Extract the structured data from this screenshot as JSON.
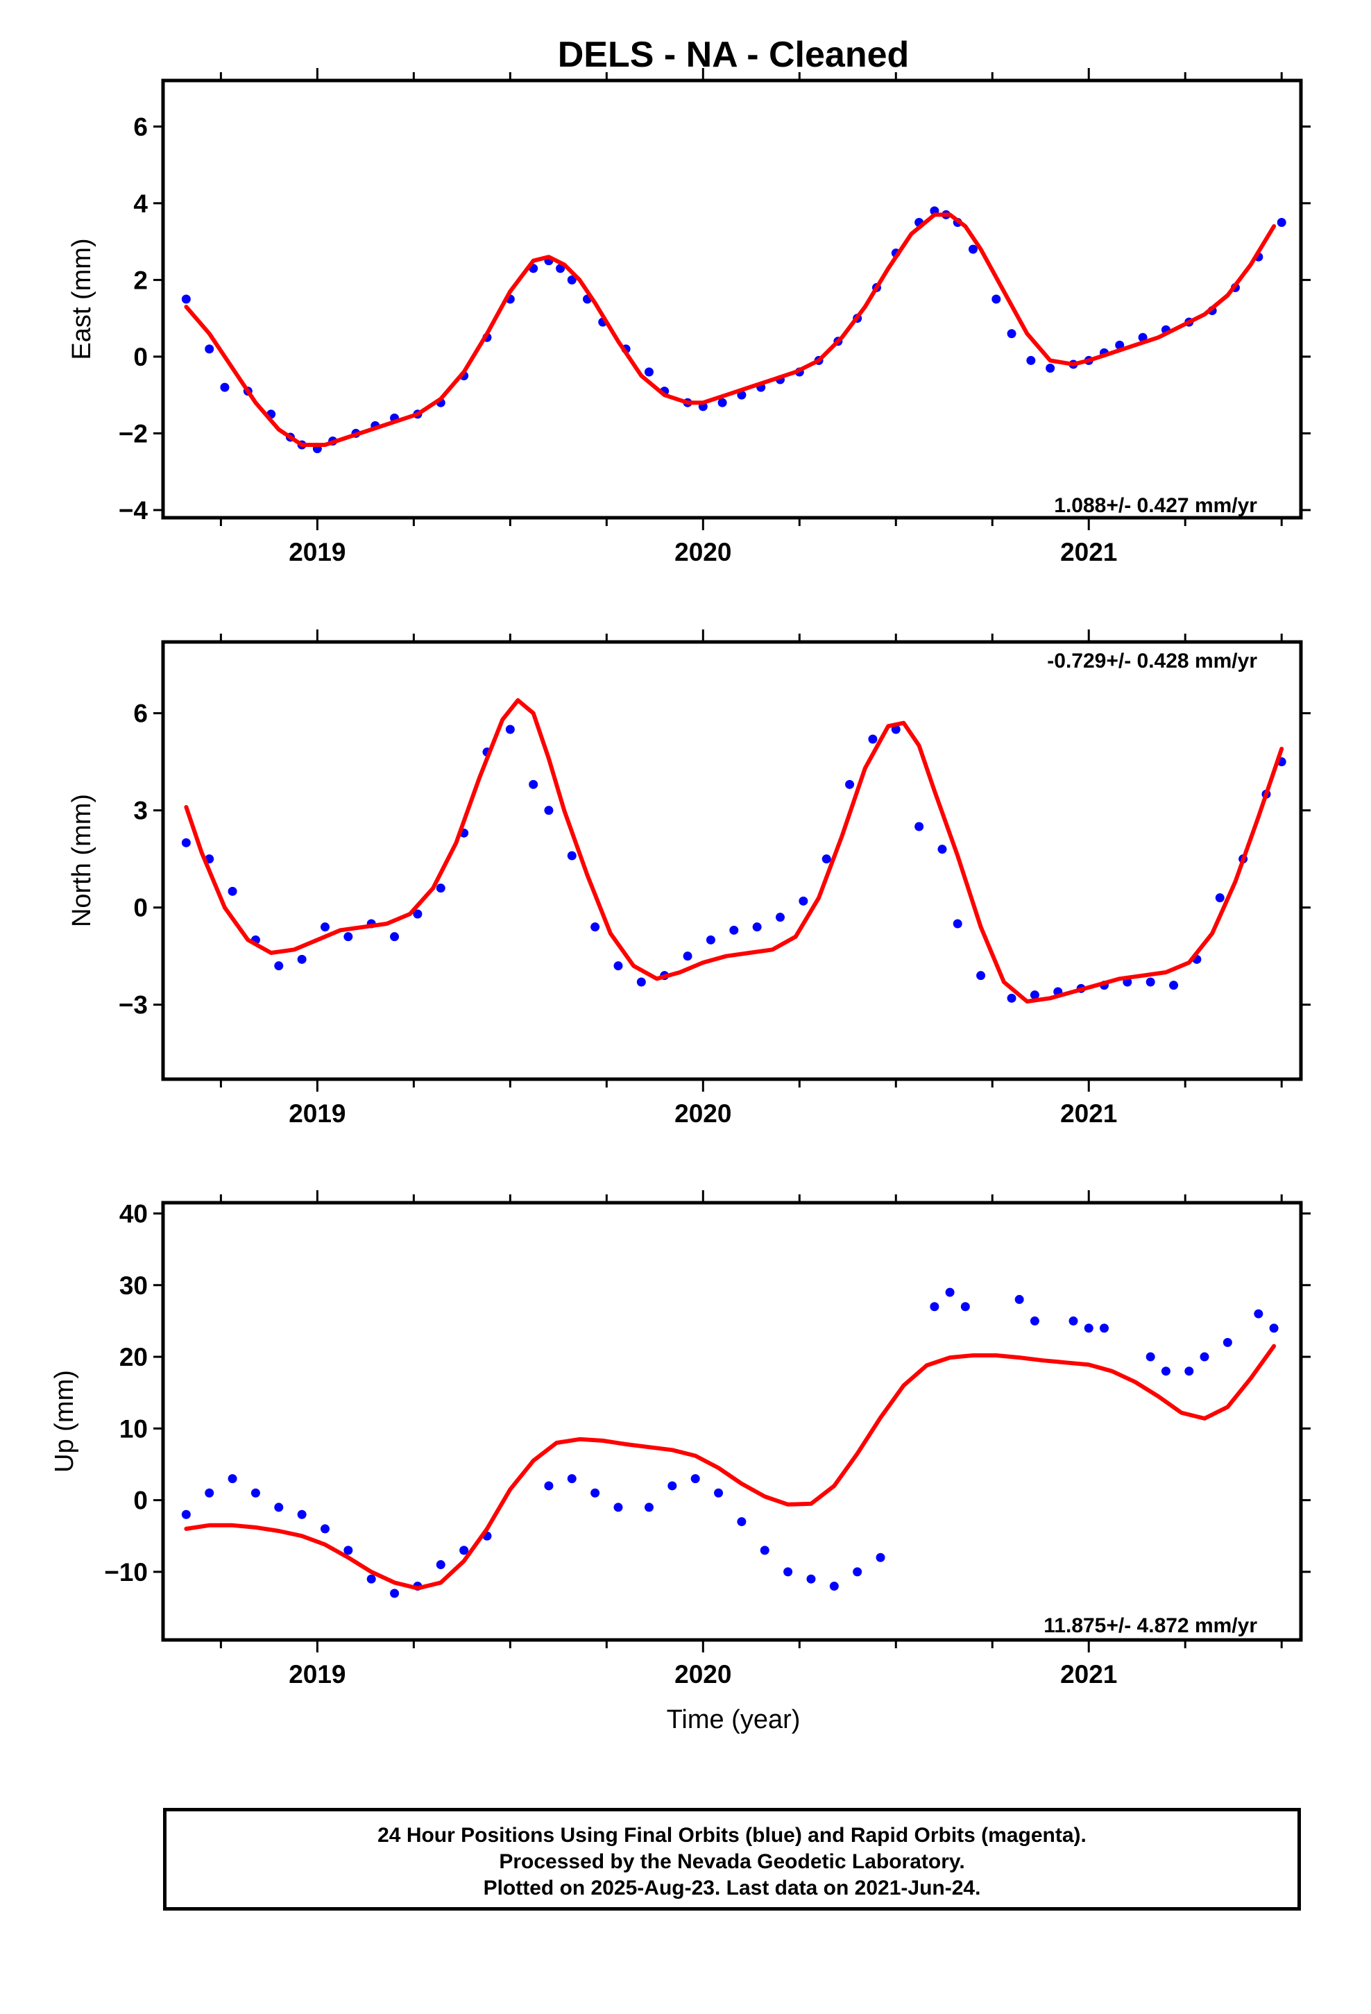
{
  "title": "DELS  - NA - Cleaned",
  "colors": {
    "data_points": "#0000ff",
    "model_curve": "#ff0000",
    "frame": "#000000"
  },
  "chart_data": [
    {
      "type": "scatter",
      "panel": "east",
      "ylabel": "East (mm)",
      "xlabel": "",
      "xlim": [
        2018.6,
        2021.55
      ],
      "ylim": [
        -4.2,
        7.2
      ],
      "yticks": [
        6,
        4,
        2,
        0,
        -2,
        -4
      ],
      "ytick_labels": [
        "6",
        "4",
        "2",
        "0",
        "−2",
        "−4"
      ],
      "xticks": [
        2019,
        2020,
        2021
      ],
      "xtick_labels": [
        "2019",
        "2020",
        "2021"
      ],
      "rate": "1.088+/- 0.427 mm/yr",
      "rate_position": "bottom-right",
      "series": [
        {
          "x": [
            2018.66,
            2018.72,
            2018.76,
            2018.82,
            2018.88,
            2018.93,
            2018.96,
            2019.0,
            2019.04,
            2019.1,
            2019.15,
            2019.2,
            2019.26,
            2019.32,
            2019.38,
            2019.44,
            2019.5,
            2019.56,
            2019.6,
            2019.63,
            2019.66,
            2019.7,
            2019.74,
            2019.8,
            2019.86,
            2019.9,
            2019.96,
            2020.0,
            2020.05,
            2020.1,
            2020.15,
            2020.2,
            2020.25,
            2020.3,
            2020.35,
            2020.4,
            2020.45,
            2020.5,
            2020.56,
            2020.6,
            2020.63,
            2020.66,
            2020.7,
            2020.76,
            2020.8,
            2020.85,
            2020.9,
            2020.96,
            2021.0,
            2021.04,
            2021.08,
            2021.14,
            2021.2,
            2021.26,
            2021.32,
            2021.38,
            2021.44,
            2021.5
          ],
          "y": [
            1.5,
            0.2,
            -0.8,
            -0.9,
            -1.5,
            -2.1,
            -2.3,
            -2.4,
            -2.2,
            -2.0,
            -1.8,
            -1.6,
            -1.5,
            -1.2,
            -0.5,
            0.5,
            1.5,
            2.3,
            2.5,
            2.3,
            2.0,
            1.5,
            0.9,
            0.2,
            -0.4,
            -0.9,
            -1.2,
            -1.3,
            -1.2,
            -1.0,
            -0.8,
            -0.6,
            -0.4,
            -0.1,
            0.4,
            1.0,
            1.8,
            2.7,
            3.5,
            3.8,
            3.7,
            3.5,
            2.8,
            1.5,
            0.6,
            -0.1,
            -0.3,
            -0.2,
            -0.1,
            0.1,
            0.3,
            0.5,
            0.7,
            0.9,
            1.2,
            1.8,
            2.6,
            3.5
          ]
        }
      ],
      "model": {
        "x": [
          2018.66,
          2018.72,
          2018.78,
          2018.84,
          2018.9,
          2018.96,
          2019.02,
          2019.08,
          2019.14,
          2019.2,
          2019.26,
          2019.32,
          2019.38,
          2019.44,
          2019.5,
          2019.56,
          2019.6,
          2019.64,
          2019.68,
          2019.72,
          2019.78,
          2019.84,
          2019.9,
          2019.96,
          2020.0,
          2020.06,
          2020.12,
          2020.18,
          2020.24,
          2020.3,
          2020.36,
          2020.42,
          2020.48,
          2020.54,
          2020.6,
          2020.64,
          2020.68,
          2020.72,
          2020.78,
          2020.84,
          2020.9,
          2020.96,
          2021.0,
          2021.06,
          2021.12,
          2021.18,
          2021.24,
          2021.3,
          2021.36,
          2021.42,
          2021.48
        ],
        "y": [
          1.3,
          0.6,
          -0.3,
          -1.2,
          -1.9,
          -2.3,
          -2.3,
          -2.1,
          -1.9,
          -1.7,
          -1.5,
          -1.1,
          -0.4,
          0.6,
          1.7,
          2.5,
          2.6,
          2.4,
          2.0,
          1.4,
          0.4,
          -0.5,
          -1.0,
          -1.2,
          -1.2,
          -1.0,
          -0.8,
          -0.6,
          -0.4,
          -0.1,
          0.5,
          1.3,
          2.3,
          3.2,
          3.7,
          3.7,
          3.4,
          2.8,
          1.7,
          0.6,
          -0.1,
          -0.2,
          -0.1,
          0.1,
          0.3,
          0.5,
          0.8,
          1.1,
          1.6,
          2.4,
          3.4
        ]
      }
    },
    {
      "type": "scatter",
      "panel": "north",
      "ylabel": "North (mm)",
      "xlabel": "",
      "xlim": [
        2018.6,
        2021.55
      ],
      "ylim": [
        -5.3,
        8.2
      ],
      "yticks": [
        6,
        3,
        0,
        -3
      ],
      "ytick_labels": [
        "6",
        "3",
        "0",
        "−3"
      ],
      "xticks": [
        2019,
        2020,
        2021
      ],
      "xtick_labels": [
        "2019",
        "2020",
        "2021"
      ],
      "rate": "-0.729+/- 0.428 mm/yr",
      "rate_position": "top-right",
      "series": [
        {
          "x": [
            2018.66,
            2018.72,
            2018.78,
            2018.84,
            2018.9,
            2018.96,
            2019.02,
            2019.08,
            2019.14,
            2019.2,
            2019.26,
            2019.32,
            2019.38,
            2019.44,
            2019.5,
            2019.56,
            2019.6,
            2019.66,
            2019.72,
            2019.78,
            2019.84,
            2019.9,
            2019.96,
            2020.02,
            2020.08,
            2020.14,
            2020.2,
            2020.26,
            2020.32,
            2020.38,
            2020.44,
            2020.5,
            2020.56,
            2020.62,
            2020.66,
            2020.72,
            2020.8,
            2020.86,
            2020.92,
            2020.98,
            2021.04,
            2021.1,
            2021.16,
            2021.22,
            2021.28,
            2021.34,
            2021.4,
            2021.46,
            2021.5
          ],
          "y": [
            2.0,
            1.5,
            0.5,
            -1.0,
            -1.8,
            -1.6,
            -0.6,
            -0.9,
            -0.5,
            -0.9,
            -0.2,
            0.6,
            2.3,
            4.8,
            5.5,
            3.8,
            3.0,
            1.6,
            -0.6,
            -1.8,
            -2.3,
            -2.1,
            -1.5,
            -1.0,
            -0.7,
            -0.6,
            -0.3,
            0.2,
            1.5,
            3.8,
            5.2,
            5.5,
            2.5,
            1.8,
            -0.5,
            -2.1,
            -2.8,
            -2.7,
            -2.6,
            -2.5,
            -2.4,
            -2.3,
            -2.3,
            -2.4,
            -1.6,
            0.3,
            1.5,
            3.5,
            4.5
          ]
        }
      ],
      "model": {
        "x": [
          2018.66,
          2018.7,
          2018.76,
          2018.82,
          2018.88,
          2018.94,
          2019.0,
          2019.06,
          2019.12,
          2019.18,
          2019.24,
          2019.3,
          2019.36,
          2019.42,
          2019.48,
          2019.52,
          2019.56,
          2019.6,
          2019.64,
          2019.7,
          2019.76,
          2019.82,
          2019.88,
          2019.94,
          2020.0,
          2020.06,
          2020.12,
          2020.18,
          2020.24,
          2020.3,
          2020.36,
          2020.42,
          2020.48,
          2020.52,
          2020.56,
          2020.6,
          2020.66,
          2020.72,
          2020.78,
          2020.84,
          2020.9,
          2020.96,
          2021.02,
          2021.08,
          2021.14,
          2021.2,
          2021.26,
          2021.32,
          2021.38,
          2021.44,
          2021.5
        ],
        "y": [
          3.1,
          1.7,
          0.0,
          -1.0,
          -1.4,
          -1.3,
          -1.0,
          -0.7,
          -0.6,
          -0.5,
          -0.2,
          0.6,
          2.0,
          4.0,
          5.8,
          6.4,
          6.0,
          4.6,
          3.0,
          1.0,
          -0.8,
          -1.8,
          -2.2,
          -2.0,
          -1.7,
          -1.5,
          -1.4,
          -1.3,
          -0.9,
          0.3,
          2.2,
          4.3,
          5.6,
          5.7,
          5.0,
          3.6,
          1.6,
          -0.6,
          -2.3,
          -2.9,
          -2.8,
          -2.6,
          -2.4,
          -2.2,
          -2.1,
          -2.0,
          -1.7,
          -0.8,
          0.8,
          2.8,
          4.9
        ]
      }
    },
    {
      "type": "scatter",
      "panel": "up",
      "ylabel": "Up (mm)",
      "xlabel": "Time (year)",
      "xlim": [
        2018.6,
        2021.55
      ],
      "ylim": [
        -19.5,
        41.5
      ],
      "yticks": [
        40,
        30,
        20,
        10,
        0,
        -10
      ],
      "ytick_labels": [
        "40",
        "30",
        "20",
        "10",
        "0",
        "−10"
      ],
      "xticks": [
        2019,
        2020,
        2021
      ],
      "xtick_labels": [
        "2019",
        "2020",
        "2021"
      ],
      "rate": "11.875+/- 4.872 mm/yr",
      "rate_position": "bottom-right",
      "series": [
        {
          "x": [
            2018.66,
            2018.72,
            2018.78,
            2018.84,
            2018.9,
            2018.96,
            2019.02,
            2019.08,
            2019.14,
            2019.2,
            2019.26,
            2019.32,
            2019.38,
            2019.44,
            2019.6,
            2019.66,
            2019.72,
            2019.78,
            2019.86,
            2019.92,
            2019.98,
            2020.04,
            2020.1,
            2020.16,
            2020.22,
            2020.28,
            2020.34,
            2020.4,
            2020.46,
            2020.6,
            2020.64,
            2020.68,
            2020.82,
            2020.86,
            2020.96,
            2021.0,
            2021.04,
            2021.16,
            2021.2,
            2021.26,
            2021.3,
            2021.36,
            2021.44,
            2021.48
          ],
          "y": [
            -2.0,
            1.0,
            3.0,
            1.0,
            -1.0,
            -2.0,
            -4.0,
            -7.0,
            -11.0,
            -13.0,
            -12.0,
            -9.0,
            -7.0,
            -5.0,
            2.0,
            3.0,
            1.0,
            -1.0,
            -1.0,
            2.0,
            3.0,
            1.0,
            -3.0,
            -7.0,
            -10.0,
            -11.0,
            -12.0,
            -10.0,
            -8.0,
            27.0,
            29.0,
            27.0,
            28.0,
            25.0,
            25.0,
            24.0,
            24.0,
            20.0,
            18.0,
            18.0,
            20.0,
            22.0,
            26.0,
            24.0
          ]
        }
      ],
      "model": {
        "x": [
          2018.66,
          2018.72,
          2018.78,
          2018.84,
          2018.9,
          2018.96,
          2019.02,
          2019.08,
          2019.14,
          2019.2,
          2019.26,
          2019.32,
          2019.38,
          2019.44,
          2019.5,
          2019.56,
          2019.62,
          2019.68,
          2019.74,
          2019.8,
          2019.86,
          2019.92,
          2019.98,
          2020.04,
          2020.1,
          2020.16,
          2020.22,
          2020.28,
          2020.34,
          2020.4,
          2020.46,
          2020.52,
          2020.58,
          2020.64,
          2020.7,
          2020.76,
          2020.82,
          2020.88,
          2020.94,
          2021.0,
          2021.06,
          2021.12,
          2021.18,
          2021.24,
          2021.3,
          2021.36,
          2021.42,
          2021.48
        ],
        "y": [
          -4.0,
          -3.5,
          -3.5,
          -3.8,
          -4.3,
          -5.0,
          -6.2,
          -8.0,
          -10.0,
          -11.5,
          -12.3,
          -11.5,
          -8.5,
          -4.0,
          1.5,
          5.5,
          8.0,
          8.5,
          8.3,
          7.8,
          7.4,
          7.0,
          6.2,
          4.5,
          2.3,
          0.5,
          -0.6,
          -0.5,
          2.0,
          6.5,
          11.5,
          16.0,
          18.8,
          19.9,
          20.2,
          20.2,
          19.9,
          19.5,
          19.2,
          18.9,
          18.0,
          16.5,
          14.5,
          12.2,
          11.4,
          13.0,
          17.0,
          21.5
        ]
      }
    }
  ],
  "footer": {
    "line1": "24 Hour Positions Using Final Orbits (blue) and Rapid Orbits (magenta).",
    "line2": "Processed by the Nevada Geodetic Laboratory.",
    "line3": "Plotted on 2025-Aug-23. Last data on 2021-Jun-24."
  }
}
